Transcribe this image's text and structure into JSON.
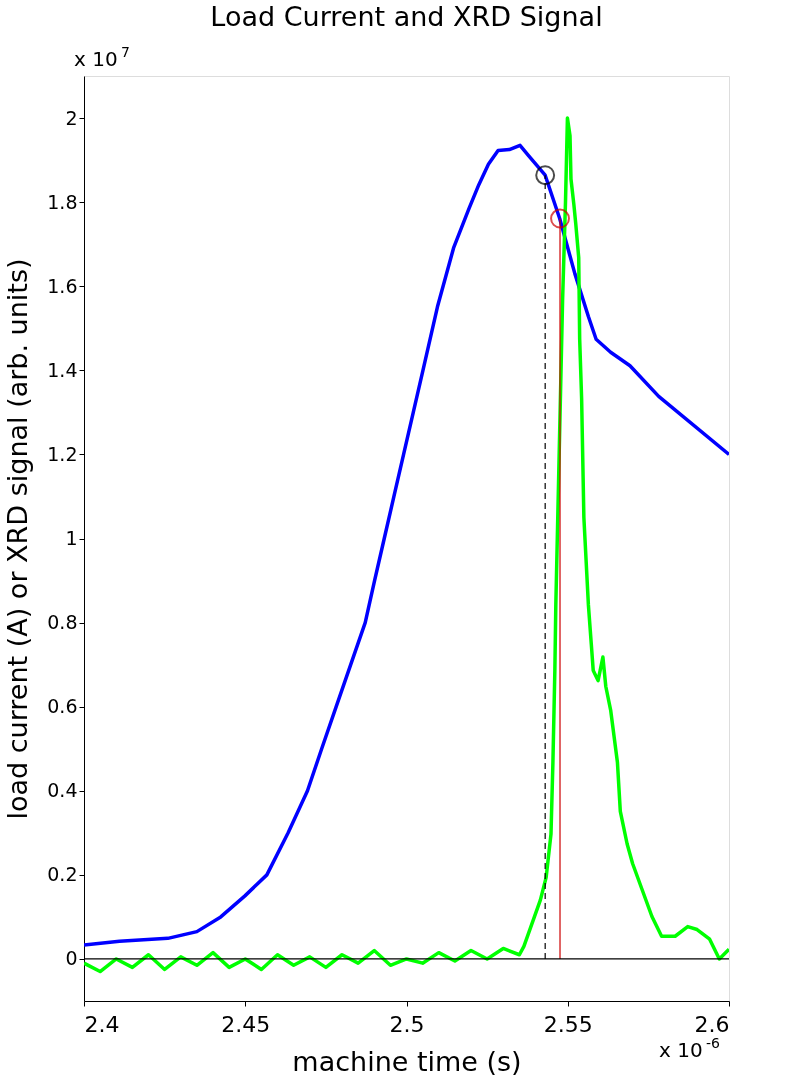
{
  "chart_data": {
    "type": "line",
    "title": "Load Current and XRD Signal",
    "xlabel": "machine time (s)",
    "ylabel": "load current (A) or XRD signal (arb. units)",
    "annotations": [
      "x 10$^{7}$",
      "x 10$^{-6}$"
    ],
    "xlim": [
      2.4,
      2.6
    ],
    "xticks": [
      2.4,
      2.45,
      2.5,
      2.55,
      2.6
    ],
    "ylim": [
      -0.1,
      2.1
    ],
    "yticks": [
      0,
      0.2,
      0.4,
      0.6,
      0.8,
      1,
      1.2,
      1.4,
      1.6,
      1.8,
      2
    ],
    "grid": false,
    "line_style": "solid",
    "marker": "none",
    "ref_lines": [
      {
        "axis": "y",
        "value": 0,
        "color": "#000000"
      }
    ],
    "series": [
      {
        "color": "#0000ff",
        "x": [
          2.4,
          2.411,
          2.426,
          2.435,
          2.4424,
          2.4499,
          2.4567,
          2.4633,
          2.4693,
          2.4737,
          2.4782,
          2.4827,
          2.4872,
          2.4901,
          2.4931,
          2.4961,
          2.4991,
          2.5021,
          2.5051,
          2.5096,
          2.5146,
          2.5194,
          2.5224,
          2.5254,
          2.5284,
          2.5319,
          2.5352,
          2.5379,
          2.543,
          2.5475,
          2.5522,
          2.5564,
          2.5588,
          2.5633,
          2.5693,
          2.5782,
          2.6
        ],
        "values": [
          0.033,
          0.042,
          0.049,
          0.065,
          0.1,
          0.15,
          0.2,
          0.3,
          0.4,
          0.5,
          0.6,
          0.7,
          0.8,
          0.9,
          1.0,
          1.1,
          1.2,
          1.3,
          1.4,
          1.551,
          1.691,
          1.785,
          1.841,
          1.89,
          1.923,
          1.925,
          1.935,
          1.91,
          1.864,
          1.761,
          1.63,
          1.528,
          1.474,
          1.443,
          1.411,
          1.338,
          1.2
        ]
      },
      {
        "color": "#00ff00",
        "x": [
          2.4,
          2.405,
          2.41,
          2.415,
          2.42,
          2.425,
          2.43,
          2.435,
          2.44,
          2.445,
          2.45,
          2.455,
          2.46,
          2.465,
          2.47,
          2.475,
          2.48,
          2.485,
          2.49,
          2.495,
          2.5,
          2.505,
          2.51,
          2.515,
          2.52,
          2.525,
          2.53,
          2.535,
          2.5364,
          2.5415,
          2.5433,
          2.5448,
          2.5454,
          2.546,
          2.5463,
          2.5484,
          2.5493,
          2.5499,
          2.5507,
          2.551,
          2.5519,
          2.5525,
          2.5534,
          2.5537,
          2.5543,
          2.555,
          2.5564,
          2.5573,
          2.5579,
          2.5594,
          2.5609,
          2.5618,
          2.5633,
          2.5654,
          2.5663,
          2.5684,
          2.5701,
          2.5731,
          2.5761,
          2.5791,
          2.5833,
          2.5872,
          2.5901,
          2.594,
          2.597,
          2.6
        ],
        "values": [
          -0.01,
          -0.03,
          0.0,
          -0.02,
          0.01,
          -0.025,
          0.005,
          -0.015,
          0.015,
          -0.02,
          0.0,
          -0.025,
          0.01,
          -0.015,
          0.005,
          -0.02,
          0.01,
          -0.01,
          0.02,
          -0.015,
          0.0,
          -0.01,
          0.015,
          -0.005,
          0.02,
          0.0,
          0.025,
          0.01,
          0.03,
          0.14,
          0.194,
          0.297,
          0.468,
          0.686,
          0.842,
          1.567,
          1.8,
          2.0,
          1.958,
          1.855,
          1.794,
          1.747,
          1.668,
          1.474,
          1.333,
          1.05,
          0.842,
          0.749,
          0.686,
          0.662,
          0.718,
          0.648,
          0.592,
          0.468,
          0.351,
          0.274,
          0.227,
          0.164,
          0.101,
          0.054,
          0.054,
          0.077,
          0.07,
          0.047,
          0.0,
          0.023
        ]
      },
      {
        "color": "#000000",
        "line_style": "dashed",
        "x": [
          2.543,
          2.543
        ],
        "values": [
          0,
          1.864
        ]
      },
      {
        "color": "#cc0000",
        "x": [
          2.5476,
          2.5476
        ],
        "values": [
          0,
          1.761
        ]
      },
      {
        "type": "scatter",
        "marker": "circle",
        "color": "#000000",
        "x": [
          2.543
        ],
        "values": [
          1.864
        ]
      },
      {
        "type": "scatter",
        "marker": "circle",
        "color": "#cc0000",
        "x": [
          2.5476
        ],
        "values": [
          1.761
        ]
      }
    ]
  }
}
